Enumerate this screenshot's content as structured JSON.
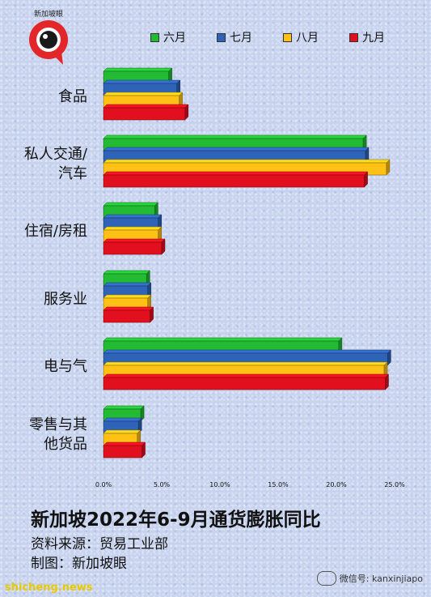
{
  "logo": {
    "brand_text": "新加坡眼"
  },
  "colors": {
    "june": "#22bb33",
    "july": "#2f63b8",
    "august": "#ffc116",
    "september": "#e2101e"
  },
  "chart_data": {
    "type": "bar",
    "orientation": "horizontal",
    "categories": [
      "食品",
      "私人交通/汽车",
      "住宿/房租",
      "服务业",
      "电与气",
      "零售与其他货品"
    ],
    "category_lines": [
      [
        "食品"
      ],
      [
        "私人交通/",
        "汽车"
      ],
      [
        "住宿/房租"
      ],
      [
        "服务业"
      ],
      [
        "电与气"
      ],
      [
        "零售与其",
        "他货品"
      ]
    ],
    "series": [
      {
        "name": "六月",
        "values": [
          5.6,
          22.3,
          4.4,
          3.7,
          20.2,
          3.2
        ]
      },
      {
        "name": "七月",
        "values": [
          6.3,
          22.5,
          4.7,
          3.8,
          24.4,
          3.0
        ]
      },
      {
        "name": "八月",
        "values": [
          6.5,
          24.3,
          4.7,
          3.8,
          24.1,
          2.9
        ]
      },
      {
        "name": "九月",
        "values": [
          7.0,
          22.4,
          5.0,
          4.0,
          24.2,
          3.3
        ]
      }
    ],
    "xlim": [
      0,
      25
    ],
    "xticks": [
      "0.0%",
      "5.0%",
      "10.0%",
      "15.0%",
      "20.0%",
      "25.0%"
    ],
    "legend_position": "top-right",
    "title": "新加坡2022年6-9月通货膨胀同比"
  },
  "source_line": "资料来源：贸易工业部",
  "credit_line": "制图：新加坡眼",
  "footer": {
    "site": "shicheng.news",
    "wechat": "微信号: kanxinjiapo"
  }
}
